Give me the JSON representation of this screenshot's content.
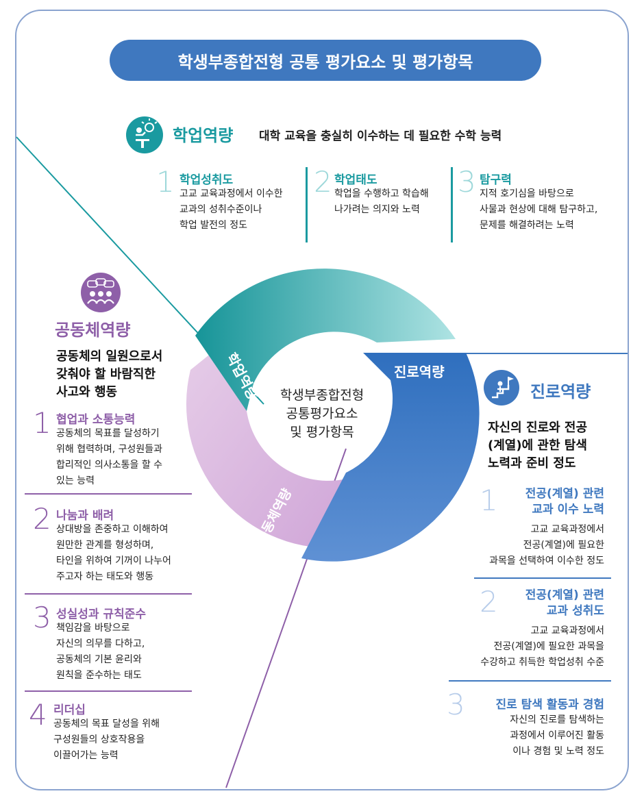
{
  "title": "학생부종합전형 공통 평가요소 및 평가항목",
  "center": {
    "lines": [
      "학생부종합전형",
      "공통평가요소",
      "및 평가항목"
    ]
  },
  "ring": {
    "academic": "학업역량",
    "career": "진로역량",
    "community": "공동체역량"
  },
  "academic": {
    "icon": "lecturer-lightbulb-icon",
    "color": "#1a9aa0",
    "title": "학업역량",
    "subtitle": "대학 교육을 충실히 이수하는 데  필요한 수학 능력",
    "items": [
      {
        "num": "1",
        "title": "학업성취도",
        "lines": [
          "고교 교육과정에서 이수한",
          "교과의 성취수준이나",
          "학업 발전의 정도"
        ]
      },
      {
        "num": "2",
        "title": "학업태도",
        "lines": [
          "학업을 수행하고 학습해",
          "나가려는 의지와 노력"
        ]
      },
      {
        "num": "3",
        "title": "탐구력",
        "lines": [
          "지적 호기심을 바탕으로",
          "사물과 현상에 대해 탐구하고,",
          "문제를 해결하려는 노력"
        ]
      }
    ]
  },
  "community": {
    "icon": "group-discussion-icon",
    "color": "#8e5fa8",
    "title": "공동체역량",
    "desc": [
      "공동체의 일원으로서",
      "갖춰야 할 바람직한",
      "사고와 행동"
    ],
    "items": [
      {
        "num": "1",
        "title": "협업과 소통능력",
        "lines": [
          "공동체의 목표를 달성하기",
          "위해 협력하며, 구성원들과",
          "합리적인 의사소통을 할 수",
          "있는 능력"
        ]
      },
      {
        "num": "2",
        "title": "나눔과 배려",
        "lines": [
          "상대방을 존중하고 이해하여",
          "원만한 관계를 형성하며,",
          "타인을 위하여 기꺼이 나누어",
          "주고자 하는 태도와 행동"
        ]
      },
      {
        "num": "3",
        "title": "성실성과 규칙준수",
        "lines": [
          "책임감을 바탕으로",
          "자신의 의무를 다하고,",
          "공동체의 기본 윤리와",
          "원칙을 준수하는 태도"
        ]
      },
      {
        "num": "4",
        "title": "리더십",
        "lines": [
          "공동체의 목표 달성을 위해",
          "구성원들의 상호작용을",
          "이끌어가는 능력"
        ]
      }
    ]
  },
  "career": {
    "icon": "person-stairs-flag-icon",
    "color": "#3f78bf",
    "title": "진로역량",
    "desc": [
      "자신의 진로와 전공",
      "(계열)에 관한 탐색",
      "노력과 준비 정도"
    ],
    "items": [
      {
        "num": "1",
        "title": [
          "전공(계열) 관련",
          "교과 이수 노력"
        ],
        "lines": [
          "고교 교육과정에서",
          "전공(계열)에 필요한",
          "과목을 선택하여 이수한 정도"
        ]
      },
      {
        "num": "2",
        "title": [
          "전공(계열) 관련",
          "교과 성취도"
        ],
        "lines": [
          "고교 교육과정에서",
          "전공(계열)에 필요한 과목을",
          "수강하고 취득한 학업성취 수준"
        ]
      },
      {
        "num": "3",
        "title": [
          "진로 탐색 활동과 경험"
        ],
        "lines": [
          "자신의 진로를 탐색하는",
          "과정에서 이루어진 활동",
          "이나 경험 및 노력 정도"
        ]
      }
    ]
  }
}
